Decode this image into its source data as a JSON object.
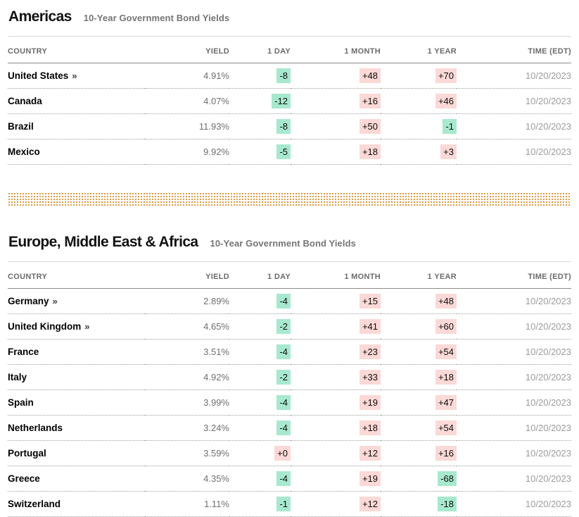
{
  "ui": {
    "link_arrow": "»"
  },
  "colors": {
    "positive_bg": "#fbd9d6",
    "negative_bg": "#a7e9cf",
    "divider_dot": "#e2993b",
    "title_text": "#121212",
    "subtitle_text": "#757575",
    "yield_text": "#6f6f6f",
    "time_text": "#9c9c9c"
  },
  "sections": [
    {
      "title": "Americas",
      "subtitle": "10-Year Government Bond Yields",
      "columns": [
        "COUNTRY",
        "YIELD",
        "1 DAY",
        "1 MONTH",
        "1 YEAR",
        "TIME (EDT)"
      ],
      "rows": [
        {
          "country": "United States",
          "link": true,
          "yield": "4.91%",
          "d1": "-8",
          "m1": "+48",
          "y1": "+70",
          "time": "10/20/2023"
        },
        {
          "country": "Canada",
          "link": false,
          "yield": "4.07%",
          "d1": "-12",
          "m1": "+16",
          "y1": "+46",
          "time": "10/20/2023"
        },
        {
          "country": "Brazil",
          "link": false,
          "yield": "11.93%",
          "d1": "-8",
          "m1": "+50",
          "y1": "-1",
          "time": "10/20/2023"
        },
        {
          "country": "Mexico",
          "link": false,
          "yield": "9.92%",
          "d1": "-5",
          "m1": "+18",
          "y1": "+3",
          "time": "10/20/2023"
        }
      ]
    },
    {
      "title": "Europe, Middle East & Africa",
      "subtitle": "10-Year Government Bond Yields",
      "columns": [
        "COUNTRY",
        "YIELD",
        "1 DAY",
        "1 MONTH",
        "1 YEAR",
        "TIME (EDT)"
      ],
      "rows": [
        {
          "country": "Germany",
          "link": true,
          "yield": "2.89%",
          "d1": "-4",
          "m1": "+15",
          "y1": "+48",
          "time": "10/20/2023"
        },
        {
          "country": "United Kingdom",
          "link": true,
          "yield": "4.65%",
          "d1": "-2",
          "m1": "+41",
          "y1": "+60",
          "time": "10/20/2023"
        },
        {
          "country": "France",
          "link": false,
          "yield": "3.51%",
          "d1": "-4",
          "m1": "+23",
          "y1": "+54",
          "time": "10/20/2023"
        },
        {
          "country": "Italy",
          "link": false,
          "yield": "4.92%",
          "d1": "-2",
          "m1": "+33",
          "y1": "+18",
          "time": "10/20/2023"
        },
        {
          "country": "Spain",
          "link": false,
          "yield": "3.99%",
          "d1": "-4",
          "m1": "+19",
          "y1": "+47",
          "time": "10/20/2023"
        },
        {
          "country": "Netherlands",
          "link": false,
          "yield": "3.24%",
          "d1": "-4",
          "m1": "+18",
          "y1": "+54",
          "time": "10/20/2023"
        },
        {
          "country": "Portugal",
          "link": false,
          "yield": "3.59%",
          "d1": "+0",
          "m1": "+12",
          "y1": "+16",
          "time": "10/20/2023"
        },
        {
          "country": "Greece",
          "link": false,
          "yield": "4.35%",
          "d1": "-4",
          "m1": "+19",
          "y1": "-68",
          "time": "10/20/2023"
        },
        {
          "country": "Switzerland",
          "link": false,
          "yield": "1.11%",
          "d1": "-1",
          "m1": "+12",
          "y1": "-18",
          "time": "10/20/2023"
        }
      ]
    }
  ]
}
